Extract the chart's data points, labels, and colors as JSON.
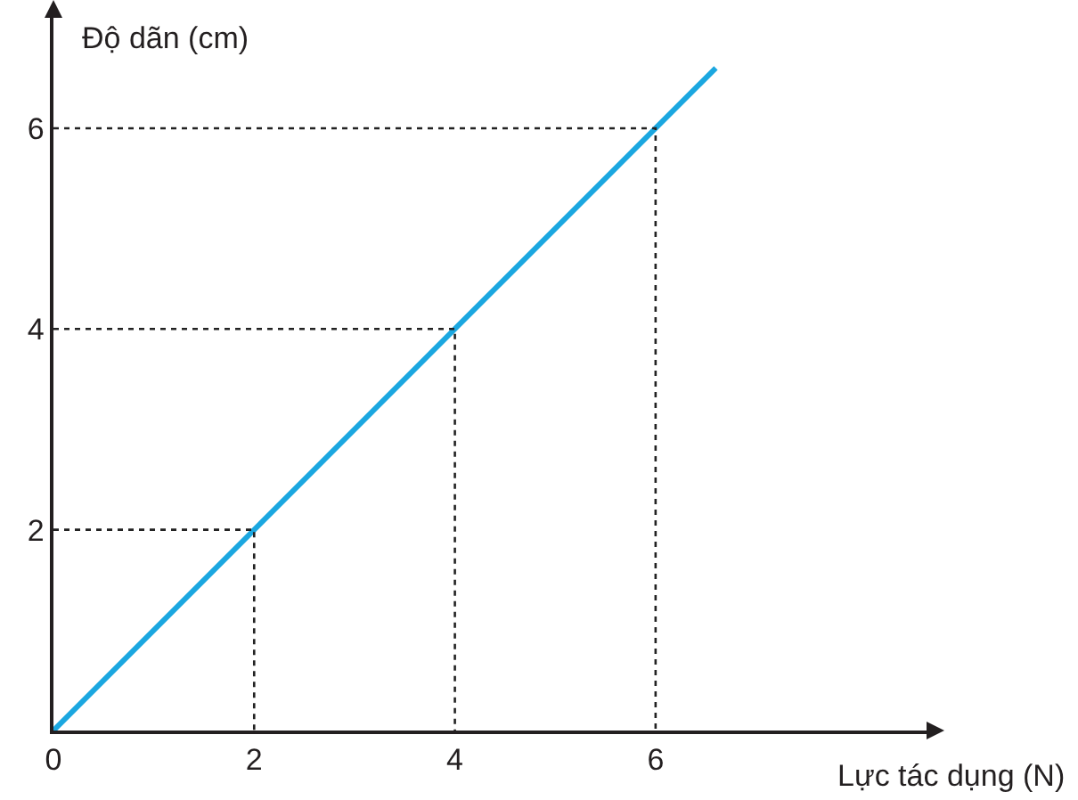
{
  "chart_data": {
    "type": "line",
    "xlabel": "Lực tác dụng (N)",
    "ylabel": "Độ dãn (cm)",
    "xlim": [
      0,
      8.7
    ],
    "ylim": [
      0,
      7.1
    ],
    "xticks": [
      0,
      2,
      4,
      6
    ],
    "yticks": [
      2,
      4,
      6
    ],
    "series": [
      {
        "color": "#1ba7e0",
        "line_style": "solid",
        "x": [
          0,
          6.6
        ],
        "values": [
          0,
          6.6
        ]
      },
      {
        "type": "line",
        "color": "#222222",
        "line_style": "dotted",
        "x": [
          0,
          2,
          2
        ],
        "values": [
          2,
          2,
          0
        ]
      },
      {
        "type": "line",
        "color": "#222222",
        "line_style": "dotted",
        "x": [
          0,
          4,
          4
        ],
        "values": [
          4,
          4,
          0
        ]
      },
      {
        "type": "line",
        "color": "#222222",
        "line_style": "dotted",
        "x": [
          0,
          6,
          6
        ],
        "values": [
          6,
          6,
          0
        ]
      }
    ]
  }
}
